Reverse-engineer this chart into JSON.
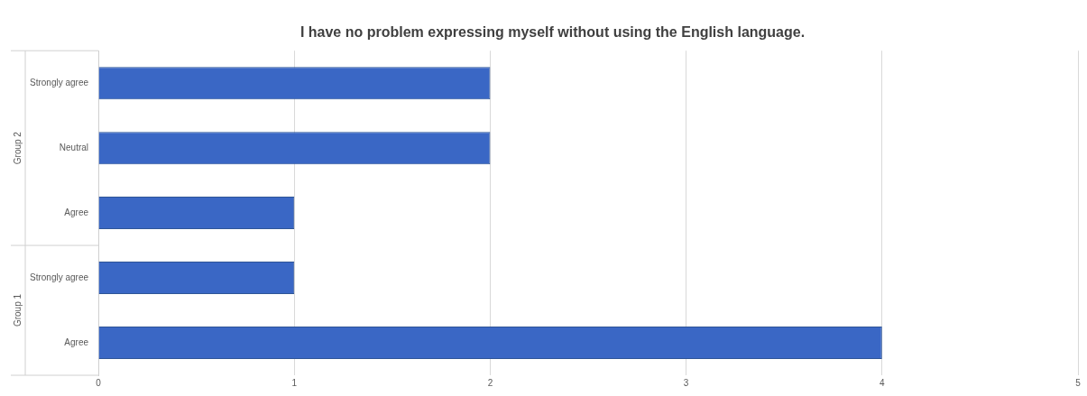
{
  "chart_data": {
    "type": "bar",
    "orientation": "horizontal",
    "title": "I have no problem expressing myself without using the English language.",
    "categories": [
      "Strongly agree",
      "Neutral",
      "Agree",
      "Strongly agree",
      "Agree"
    ],
    "values": [
      2,
      2,
      1,
      1,
      4
    ],
    "color": "#3a67c5",
    "xlim": [
      0,
      5
    ],
    "xticks": [
      0,
      1,
      2,
      3,
      4,
      5
    ],
    "grid": "x",
    "annotations": [
      "Group 2",
      "Group 1"
    ]
  }
}
